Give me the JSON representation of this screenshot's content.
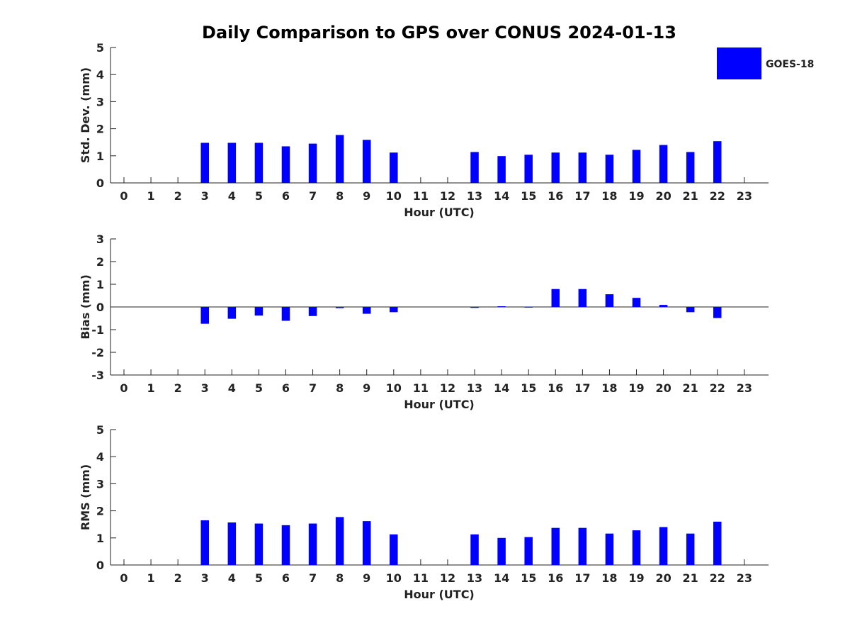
{
  "chart_data": {
    "title": "Daily Comparison to GPS over CONUS 2024-01-13",
    "type": "bar",
    "legend": {
      "label": "GOES-18",
      "color": "#0000ff",
      "placement": "top-right"
    },
    "bar_color": "#0000ff",
    "panels": [
      {
        "id": "std",
        "ylabel": "Std. Dev. (mm)",
        "xlabel": "Hour (UTC)",
        "ylim": [
          0,
          5
        ],
        "yticks": [
          "0",
          "1",
          "2",
          "3",
          "4",
          "5"
        ],
        "categories": [
          "0",
          "1",
          "2",
          "3",
          "4",
          "5",
          "6",
          "7",
          "8",
          "9",
          "10",
          "11",
          "12",
          "13",
          "14",
          "15",
          "16",
          "17",
          "18",
          "19",
          "20",
          "21",
          "22",
          "23"
        ],
        "series": [
          {
            "name": "GOES-18",
            "values": [
              null,
              null,
              null,
              1.48,
              1.48,
              1.48,
              1.35,
              1.45,
              1.77,
              1.59,
              1.12,
              null,
              null,
              1.14,
              0.99,
              1.04,
              1.12,
              1.12,
              1.04,
              1.22,
              1.4,
              1.14,
              1.54,
              null
            ]
          }
        ]
      },
      {
        "id": "bias",
        "ylabel": "Bias (mm)",
        "xlabel": "Hour (UTC)",
        "ylim": [
          -3,
          3
        ],
        "yticks": [
          "-3",
          "-2",
          "-1",
          "0",
          "1",
          "2",
          "3"
        ],
        "categories": [
          "0",
          "1",
          "2",
          "3",
          "4",
          "5",
          "6",
          "7",
          "8",
          "9",
          "10",
          "11",
          "12",
          "13",
          "14",
          "15",
          "16",
          "17",
          "18",
          "19",
          "20",
          "21",
          "22",
          "23"
        ],
        "series": [
          {
            "name": "GOES-18",
            "values": [
              null,
              null,
              null,
              -0.74,
              -0.52,
              -0.38,
              -0.61,
              -0.4,
              -0.05,
              -0.3,
              -0.23,
              null,
              null,
              -0.04,
              0.03,
              0.01,
              0.79,
              0.79,
              0.56,
              0.4,
              0.09,
              -0.23,
              -0.49,
              null
            ]
          }
        ]
      },
      {
        "id": "rms",
        "ylabel": "RMS (mm)",
        "xlabel": "Hour (UTC)",
        "ylim": [
          0,
          5
        ],
        "yticks": [
          "0",
          "1",
          "2",
          "3",
          "4",
          "5"
        ],
        "categories": [
          "0",
          "1",
          "2",
          "3",
          "4",
          "5",
          "6",
          "7",
          "8",
          "9",
          "10",
          "11",
          "12",
          "13",
          "14",
          "15",
          "16",
          "17",
          "18",
          "19",
          "20",
          "21",
          "22",
          "23"
        ],
        "series": [
          {
            "name": "GOES-18",
            "values": [
              null,
              null,
              null,
              1.65,
              1.57,
              1.53,
              1.47,
              1.53,
              1.77,
              1.62,
              1.13,
              null,
              null,
              1.13,
              1.0,
              1.03,
              1.37,
              1.37,
              1.16,
              1.28,
              1.4,
              1.16,
              1.6,
              null
            ]
          }
        ]
      }
    ]
  }
}
